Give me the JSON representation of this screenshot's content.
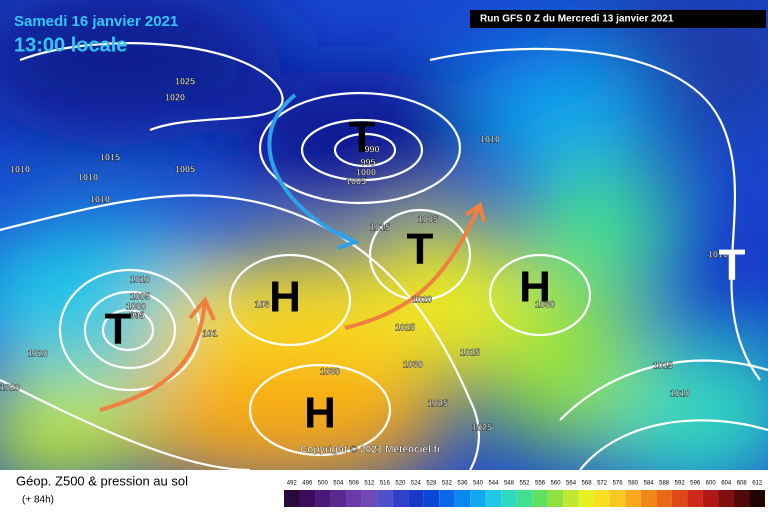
{
  "header": {
    "valid_time": "Samedi 16 janvier 2021",
    "local_time": "13:00 locale",
    "run": "Run GFS 0 Z du Mercredi 13 janvier 2021"
  },
  "map": {
    "copyright": "Copyright © 2021 Meteociel.fr",
    "isobar_labels": [
      1025,
      1020,
      1015,
      1010,
      1010,
      1010,
      1005,
      990,
      995,
      1000,
      1005,
      1010,
      1015,
      1005,
      1020,
      1025,
      1030,
      1010,
      1005,
      1000,
      995,
      1020,
      1020,
      1030,
      1030,
      1025,
      1025,
      1025,
      1015,
      1010,
      101,
      103,
      1010
    ],
    "centers": [
      "T",
      "T",
      "T",
      "T",
      "H",
      "H",
      "H"
    ]
  },
  "legend": {
    "title": "Géop. Z500 & pression au sol",
    "lead_time": "(+ 84h)",
    "scale": [
      492,
      496,
      500,
      504,
      508,
      512,
      516,
      520,
      524,
      528,
      532,
      536,
      540,
      544,
      548,
      552,
      556,
      560,
      564,
      568,
      572,
      576,
      580,
      584,
      588,
      592,
      596,
      600,
      604,
      608,
      612
    ],
    "colors": [
      "#2a0a3a",
      "#3c0c5a",
      "#4b1a78",
      "#5a2a90",
      "#6a3aa8",
      "#7048b8",
      "#5050c8",
      "#3040c8",
      "#1838c8",
      "#0848d8",
      "#0868e8",
      "#0888f0",
      "#10a8f0",
      "#20c8e8",
      "#30d8c0",
      "#40e090",
      "#60e060",
      "#90e040",
      "#c0e830",
      "#e8f020",
      "#f8e020",
      "#f8c820",
      "#f8a818",
      "#f08818",
      "#e86818",
      "#e04818",
      "#d02818",
      "#b01818",
      "#801010",
      "#500808",
      "#200404"
    ]
  }
}
